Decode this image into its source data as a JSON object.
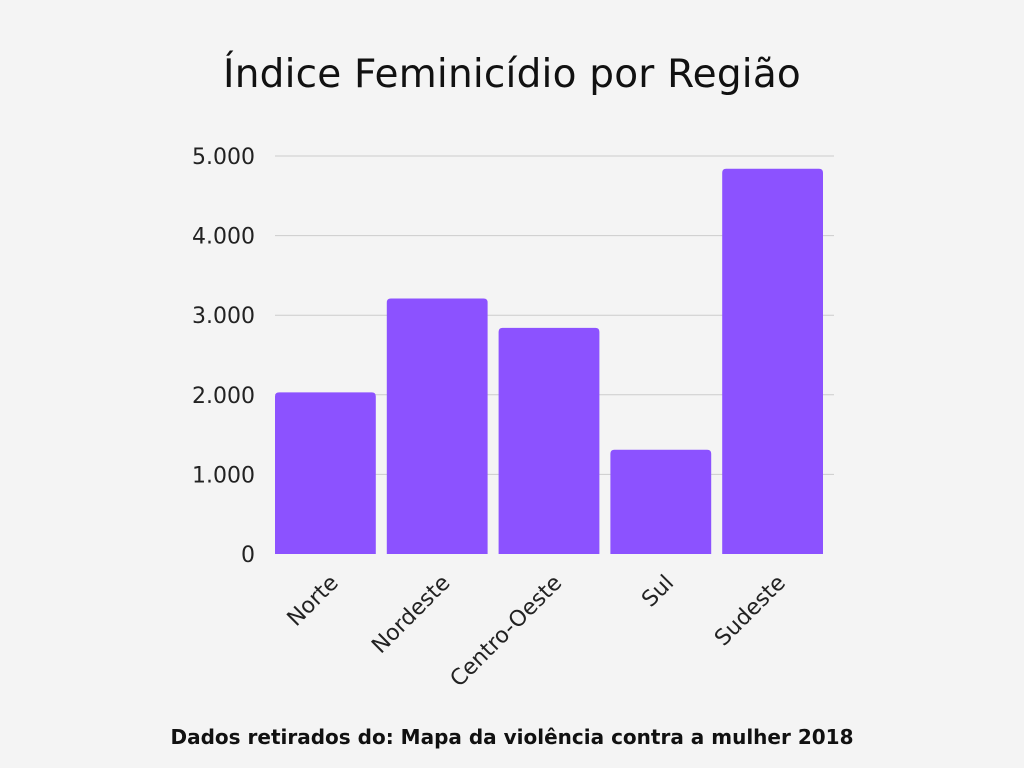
{
  "chart_data": {
    "type": "bar",
    "title": "Índice Feminicídio por Região",
    "xlabel": "",
    "ylabel": "",
    "categories": [
      "Norte",
      "Nordeste",
      "Centro-Oeste",
      "Sul",
      "Sudeste"
    ],
    "values": [
      2030,
      3210,
      2840,
      1310,
      4840
    ],
    "ylim": [
      0,
      5000
    ],
    "yticks": [
      0,
      1000,
      2000,
      3000,
      4000,
      5000
    ],
    "ytick_labels": [
      "0",
      "1.000",
      "2.000",
      "3.000",
      "4.000",
      "5.000"
    ],
    "grid": true,
    "legend": "none",
    "bar_color": "#8c52ff",
    "grid_color": "#cccccc"
  },
  "footer": {
    "source": "Dados retirados do: Mapa da violência contra a mulher 2018"
  }
}
